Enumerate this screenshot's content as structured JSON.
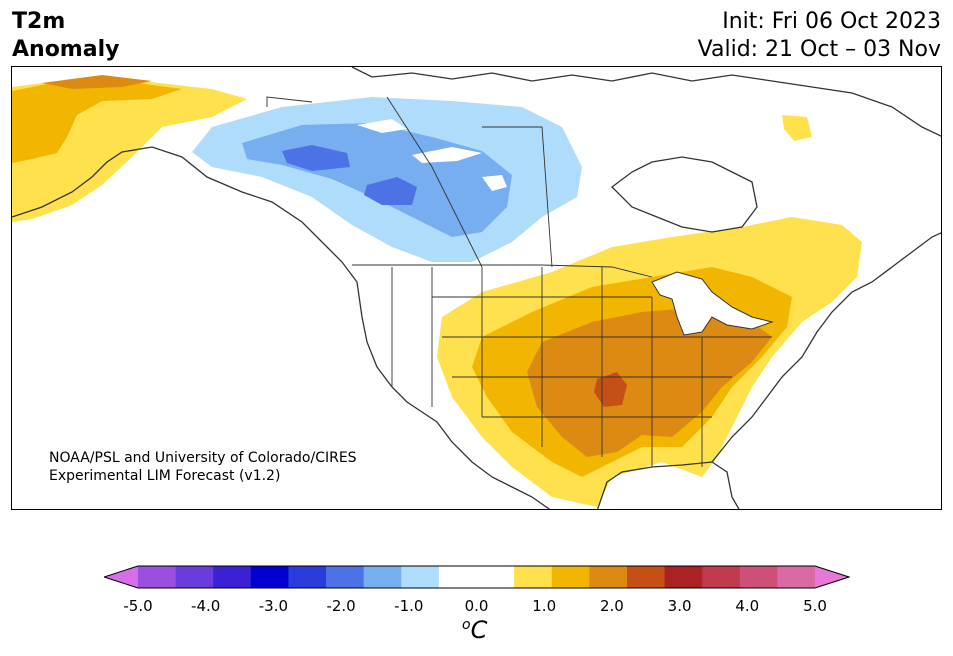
{
  "header": {
    "title_line1": "T2m",
    "title_line2": "Anomaly",
    "init": "Init: Fri 06 Oct 2023",
    "valid": "Valid: 21 Oct – 03 Nov"
  },
  "credit": {
    "line1": "NOAA/PSL and University of Colorado/CIRES",
    "line2": "Experimental LIM Forecast (v1.2)"
  },
  "colorbar": {
    "ticks": [
      "-5.0",
      "-4.0",
      "-3.0",
      "-2.0",
      "-1.0",
      "0.0",
      "1.0",
      "2.0",
      "3.0",
      "4.0",
      "5.0"
    ],
    "unit_sup": "o",
    "unit": "C",
    "colors": [
      "#d56ee8",
      "#9a4fdf",
      "#6a3cdc",
      "#3a22d4",
      "#0000d0",
      "#2a3ddc",
      "#4d72e6",
      "#76aef0",
      "#aedcfa",
      "#ffffff",
      "#ffffff",
      "#ffe14d",
      "#f3b600",
      "#dc8a12",
      "#c45016",
      "#aa2222",
      "#c03a4e",
      "#cc5078",
      "#d96aa4",
      "#e878d8"
    ]
  },
  "map": {
    "anomaly_regions": [
      {
        "name": "western-canada-cold",
        "level": -1.0
      },
      {
        "name": "western-canada-colder",
        "level": -1.5
      },
      {
        "name": "western-canada-coldest",
        "level": -2.0
      },
      {
        "name": "alaska-warm",
        "level": 1.0
      },
      {
        "name": "alaska-warmer",
        "level": 1.5
      },
      {
        "name": "central-us-warm",
        "level": 1.0
      },
      {
        "name": "central-us-warmer",
        "level": 1.5
      },
      {
        "name": "south-central-us-warm",
        "level": 2.0
      },
      {
        "name": "arkansas-warmest",
        "level": 2.5
      }
    ]
  }
}
